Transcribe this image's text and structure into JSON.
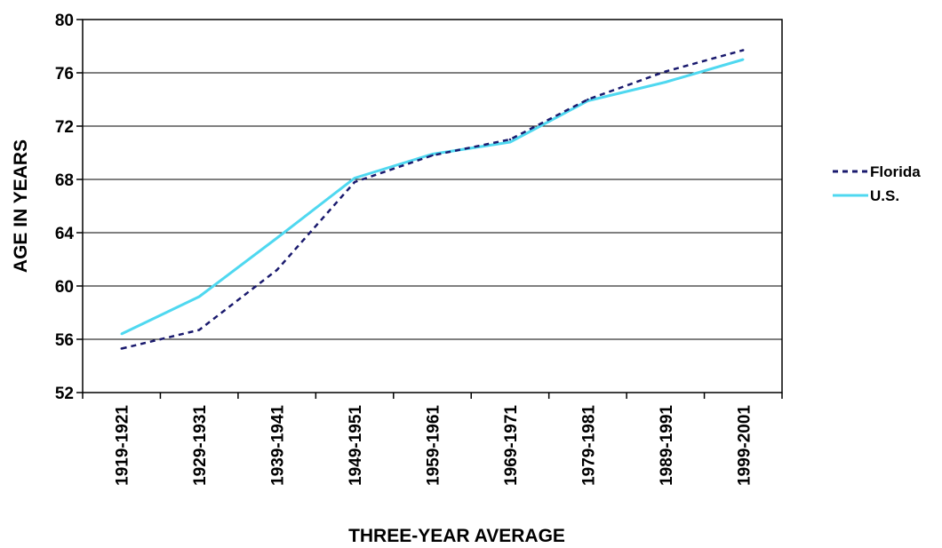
{
  "chart_data": {
    "type": "line",
    "title": "",
    "xlabel": "THREE-YEAR AVERAGE",
    "ylabel": "AGE IN YEARS",
    "categories": [
      "1919-1921",
      "1929-1931",
      "1939-1941",
      "1949-1951",
      "1959-1961",
      "1969-1971",
      "1979-1981",
      "1989-1991",
      "1999-2001"
    ],
    "ylim": [
      52,
      80
    ],
    "yticks": [
      52,
      56,
      60,
      64,
      68,
      72,
      76,
      80
    ],
    "grid": true,
    "legend_position": "right",
    "series": [
      {
        "name": "Florida",
        "values": [
          55.3,
          56.7,
          61.2,
          67.8,
          69.8,
          71.0,
          74.0,
          76.1,
          77.7
        ],
        "color": "#1a1a6e",
        "style": "dashed"
      },
      {
        "name": "U.S.",
        "values": [
          56.4,
          59.2,
          63.6,
          68.1,
          69.9,
          70.8,
          73.9,
          75.3,
          77.0
        ],
        "color": "#4fd8f0",
        "style": "solid"
      }
    ]
  }
}
